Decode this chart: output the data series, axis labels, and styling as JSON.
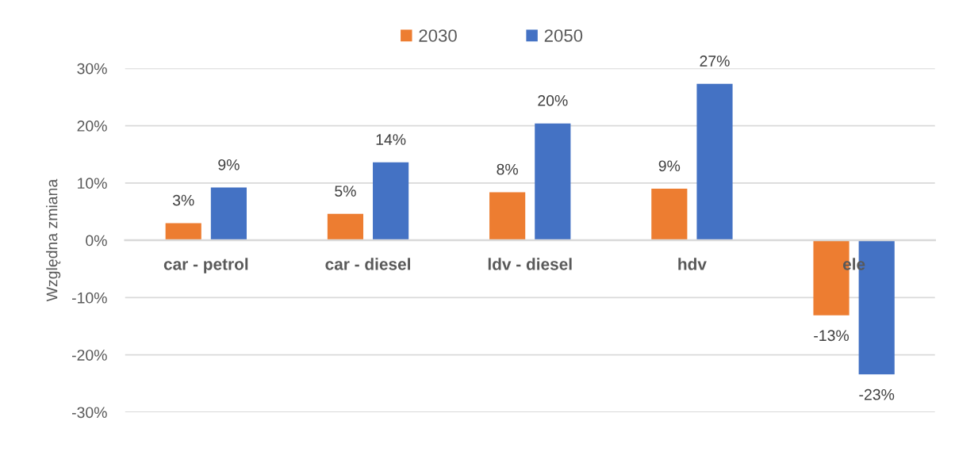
{
  "chart_data": {
    "type": "bar",
    "ylabel": "Względna zmiana",
    "categories": [
      "car - petrol",
      "car - diesel",
      "ldv - diesel",
      "hdv",
      "ele"
    ],
    "series": [
      {
        "name": "2030",
        "color": "#ed7d31",
        "values": [
          3.0,
          4.6,
          8.4,
          9.0,
          -13.1
        ],
        "value_labels": [
          "3%",
          "5%",
          "8%",
          "9%",
          "-13%"
        ]
      },
      {
        "name": "2050",
        "color": "#4472c4",
        "values": [
          9.2,
          13.6,
          20.4,
          27.3,
          -23.4
        ],
        "value_labels": [
          "9%",
          "14%",
          "20%",
          "27%",
          "-23%"
        ]
      }
    ],
    "ylim": [
      -30,
      30
    ],
    "yticks": [
      {
        "value": -30,
        "label": "-30%"
      },
      {
        "value": -20,
        "label": "-20%"
      },
      {
        "value": -10,
        "label": "-10%"
      },
      {
        "value": 0,
        "label": "0%"
      },
      {
        "value": 10,
        "label": "10%"
      },
      {
        "value": 20,
        "label": "20%"
      },
      {
        "value": 30,
        "label": "30%"
      }
    ],
    "grid": "y",
    "legend": "top"
  }
}
